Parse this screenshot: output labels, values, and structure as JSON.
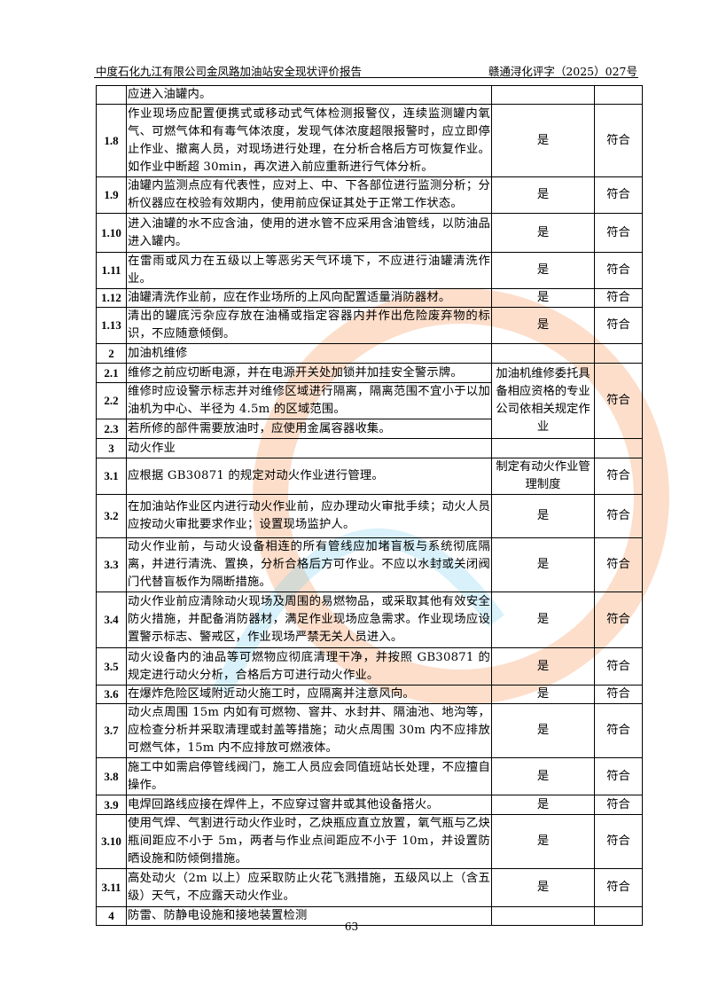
{
  "header": {
    "title": "中度石化九江有限公司金凤路加油站安全现状评价报告",
    "doc_number": "赣通浔化评字（2025）027号"
  },
  "watermark_colors": {
    "orange": "#f5a06a",
    "blue": "#7fd0ef"
  },
  "table": {
    "rows": [
      {
        "num": "",
        "content": "应进入油罐内。",
        "result": "",
        "conclusion": ""
      },
      {
        "num": "1.8",
        "content": "作业现场应配置便携式或移动式气体检测报警仪，连续监测罐内氧气、可燃气体和有毒气体浓度，发现气体浓度超限报警时，应立即停止作业、撤离人员，对现场进行处理，在分析合格后方可恢复作业。如作业中断超 30min，再次进入前应重新进行气体分析。",
        "result": "是",
        "conclusion": "符合"
      },
      {
        "num": "1.9",
        "content": "油罐内监测点应有代表性，应对上、中、下各部位进行监测分析；分析仪器应在校验有效期内，使用前应保证其处于正常工作状态。",
        "result": "是",
        "conclusion": "符合"
      },
      {
        "num": "1.10",
        "content": "进入油罐的水不应含油，使用的进水管不应采用含油管线，以防油品进入罐内。",
        "result": "是",
        "conclusion": "符合"
      },
      {
        "num": "1.11",
        "content": "在雷雨或风力在五级以上等恶劣天气环境下，不应进行油罐清洗作业。",
        "result": "是",
        "conclusion": "符合"
      },
      {
        "num": "1.12",
        "content": "油罐清洗作业前，应在作业场所的上风向配置适量消防器材。",
        "result": "是",
        "conclusion": "符合"
      },
      {
        "num": "1.13",
        "content": "清出的罐底污杂应存放在油桶或指定容器内并作出危险废弃物的标识，不应随意倾倒。",
        "result": "是",
        "conclusion": "符合"
      },
      {
        "num": "2",
        "content": "加油机维修",
        "result": "",
        "conclusion": ""
      },
      {
        "num": "2.1",
        "content": "维修之前应切断电源，并在电源开关处加锁并加挂安全警示牌。",
        "result": "加油机维修委托具备相应资格的专业公司依相关规定作业",
        "conclusion": "符合",
        "span": 3
      },
      {
        "num": "2.2",
        "content": "维修时应设警示标志并对维修区域进行隔离，隔离范围不宜小于以加油机为中心、半径为 4.5m 的区域范围。",
        "merged": true
      },
      {
        "num": "2.3",
        "content": "若所修的部件需要放油时，应使用金属容器收集。",
        "merged": true
      },
      {
        "num": "3",
        "content": "动火作业",
        "result": "",
        "conclusion": ""
      },
      {
        "num": "3.1",
        "content": "应根据 GB30871 的规定对动火作业进行管理。",
        "result": "制定有动火作业管理制度",
        "conclusion": "符合"
      },
      {
        "num": "3.2",
        "content": "在加油站作业区内进行动火作业前，应办理动火审批手续；动火人员应按动火审批要求作业；设置现场监护人。",
        "result": "是",
        "conclusion": "符合"
      },
      {
        "num": "3.3",
        "content": "动火作业前，与动火设备相连的所有管线应加堵盲板与系统彻底隔离，并进行清洗、置换，分析合格后方可作业。不应以水封或关闭阀门代替盲板作为隔断措施。",
        "result": "是",
        "conclusion": "符合"
      },
      {
        "num": "3.4",
        "content": "动火作业前应清除动火现场及周围的易燃物品，或采取其他有效安全防火措施，并配备消防器材，满足作业现场应急需求。作业现场应设置警示标志、警戒区，作业现场严禁无关人员进入。",
        "result": "是",
        "conclusion": "符合"
      },
      {
        "num": "3.5",
        "content": "动火设备内的油品等可燃物应彻底清理干净，并按照 GB30871 的规定进行动火分析，合格后方可进行动火作业。",
        "result": "是",
        "conclusion": "符合"
      },
      {
        "num": "3.6",
        "content": "在爆炸危险区域附近动火施工时，应隔离并注意风向。",
        "result": "是",
        "conclusion": "符合"
      },
      {
        "num": "3.7",
        "content": "动火点周围 15m 内如有可燃物、窨井、水封井、隔油池、地沟等，应检查分析并采取清理或封盖等措施；动火点周围 30m 内不应排放可燃气体，15m 内不应排放可燃液体。",
        "result": "是",
        "conclusion": "符合"
      },
      {
        "num": "3.8",
        "content": "施工中如需启停管线阀门，施工人员应会同值班站长处理，不应擅自操作。",
        "result": "是",
        "conclusion": "符合"
      },
      {
        "num": "3.9",
        "content": "电焊回路线应接在焊件上，不应穿过窨井或其他设备搭火。",
        "result": "是",
        "conclusion": "符合"
      },
      {
        "num": "3.10",
        "content": "使用气焊、气割进行动火作业时，乙炔瓶应直立放置，氧气瓶与乙炔瓶间距应不小于 5m，两者与作业点间距应不小于 10m，并设置防晒设施和防倾倒措施。",
        "result": "是",
        "conclusion": "符合"
      },
      {
        "num": "3.11",
        "content": "高处动火（2m 以上）应采取防止火花飞溅措施，五级风以上（含五级）天气，不应露天动火作业。",
        "result": "是",
        "conclusion": "符合"
      },
      {
        "num": "4",
        "content": "防雷、防静电设施和接地装置检测",
        "result": "",
        "conclusion": ""
      }
    ]
  },
  "footer": {
    "page_number": "63"
  }
}
